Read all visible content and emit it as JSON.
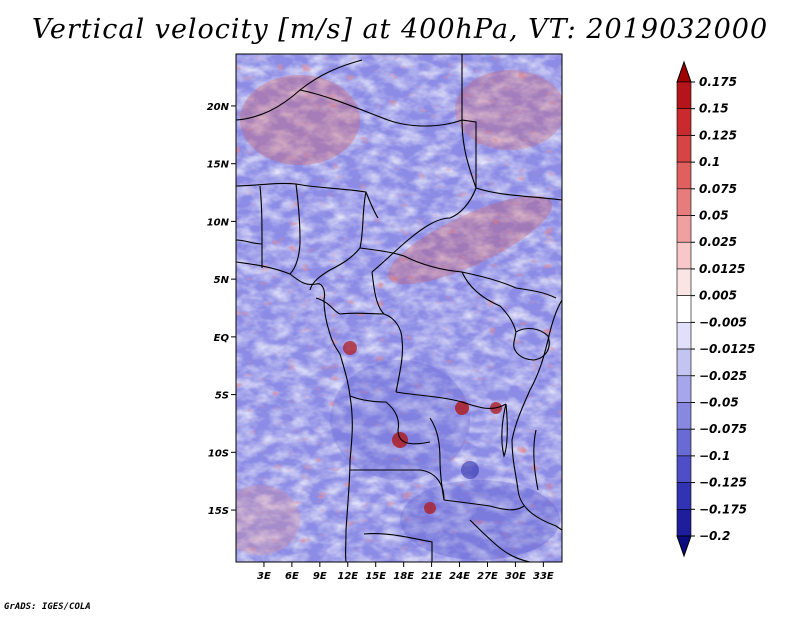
{
  "title": "Vertical velocity [m/s] at 400hPa, VT: 2019032000",
  "credit": "GrADS: IGES/COLA",
  "map": {
    "lat_ticks": [
      "20N",
      "15N",
      "10N",
      "5N",
      "EQ",
      "5S",
      "10S",
      "15S"
    ],
    "lon_ticks": [
      "3E",
      "6E",
      "9E",
      "12E",
      "15E",
      "18E",
      "21E",
      "24E",
      "27E",
      "30E",
      "33E"
    ],
    "lon_range": [
      0,
      35
    ],
    "lat_range": [
      -19.5,
      24.5
    ]
  },
  "colorbar": {
    "labels": [
      "0.175",
      "0.15",
      "0.125",
      "0.1",
      "0.075",
      "0.05",
      "0.025",
      "0.0125",
      "0.005",
      "−0.005",
      "−0.0125",
      "−0.025",
      "−0.05",
      "−0.075",
      "−0.1",
      "−0.125",
      "−0.175",
      "−0.2"
    ],
    "colors": [
      "#9e0000",
      "#b5141a",
      "#c82a2e",
      "#d64545",
      "#e06060",
      "#e67c7c",
      "#f0a0a0",
      "#f8c8c8",
      "#fbe4e4",
      "#ffffff",
      "#e0e0fa",
      "#c4c4f2",
      "#a6a6ea",
      "#8888e0",
      "#6a6ad4",
      "#4e4ec8",
      "#3232b4",
      "#1e1e9c",
      "#0c0c80"
    ]
  },
  "colors": {
    "positive": "#d05050",
    "negative": "#5a5ad8",
    "neutral": "#ffffff"
  }
}
